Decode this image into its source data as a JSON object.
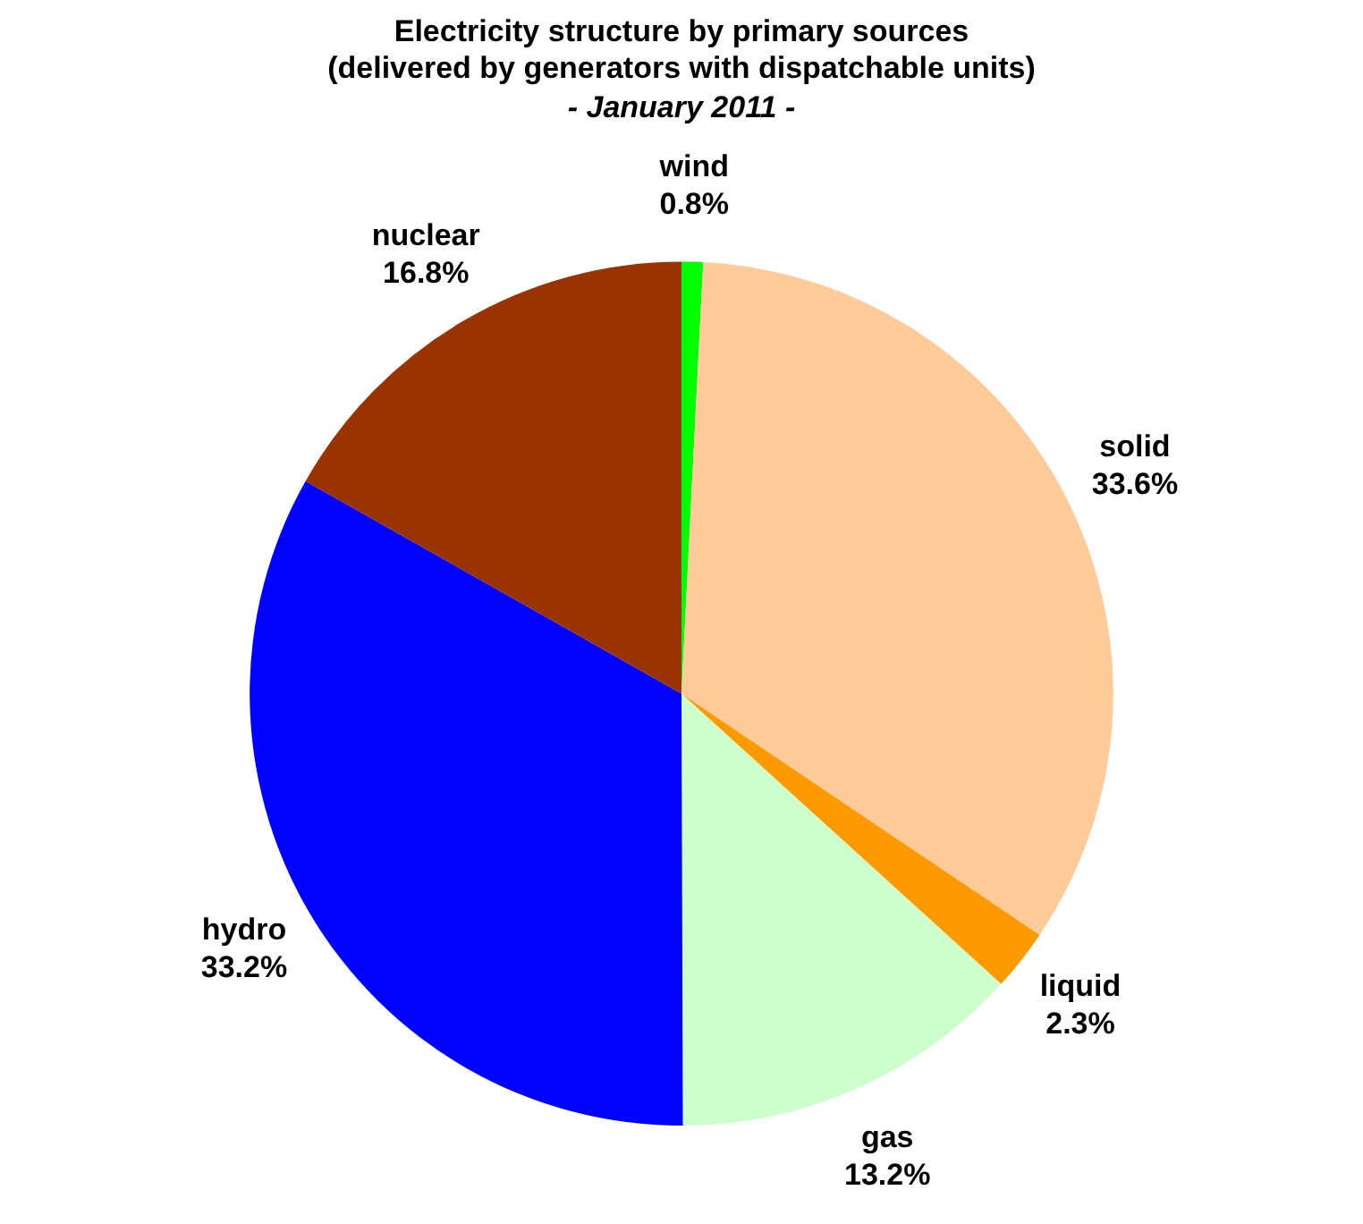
{
  "chart_data": {
    "type": "pie",
    "title": "Electricity structure by primary sources\n(delivered by generators with dispatchable units)",
    "subtitle": "- January 2011 -",
    "categories": [
      "wind",
      "solid",
      "liquid",
      "gas",
      "hydro",
      "nuclear"
    ],
    "values": [
      0.8,
      33.6,
      2.3,
      13.2,
      33.2,
      16.8
    ],
    "colors": [
      "#00ff00",
      "#ffcc99",
      "#ff9900",
      "#ccffcc",
      "#0000ff",
      "#993300"
    ],
    "value_labels": [
      "0.8%",
      "33.6%",
      "2.3%",
      "13.2%",
      "33.2%",
      "16.8%"
    ],
    "legend": false
  }
}
